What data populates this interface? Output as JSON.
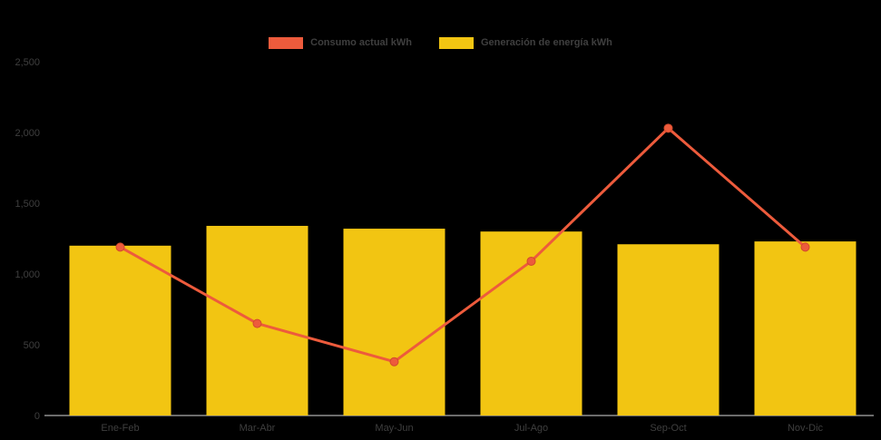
{
  "chart_data": {
    "type": "bar",
    "subtype": "bar-with-line-overlay",
    "title": "",
    "xlabel": "",
    "ylabel": "",
    "categories": [
      "Ene-Feb",
      "Mar-Abr",
      "May-Jun",
      "Jul-Ago",
      "Sep-Oct",
      "Nov-Dic"
    ],
    "series": [
      {
        "name": "Consumo actual kWh",
        "type": "line",
        "color": "#ed5b3c",
        "marker_border_color": "#d24a2c",
        "values": [
          1190,
          650,
          380,
          1090,
          2030,
          1190
        ]
      },
      {
        "name": "Generación de energía kWh",
        "type": "bar",
        "color": "#f2c512",
        "values": [
          1200,
          1340,
          1320,
          1300,
          1210,
          1230
        ]
      }
    ],
    "ylim": [
      0,
      2500
    ],
    "yticks": [
      0,
      500,
      1000,
      1500,
      2000,
      2500
    ],
    "ytick_labels": [
      "0",
      "500",
      "1,000",
      "1,500",
      "2,000",
      "2,500"
    ],
    "grid": false,
    "legend_position": "top",
    "background_color": "#000000",
    "text_color": "#3f3f3f",
    "axis_line_color": "#d9d9d9"
  }
}
